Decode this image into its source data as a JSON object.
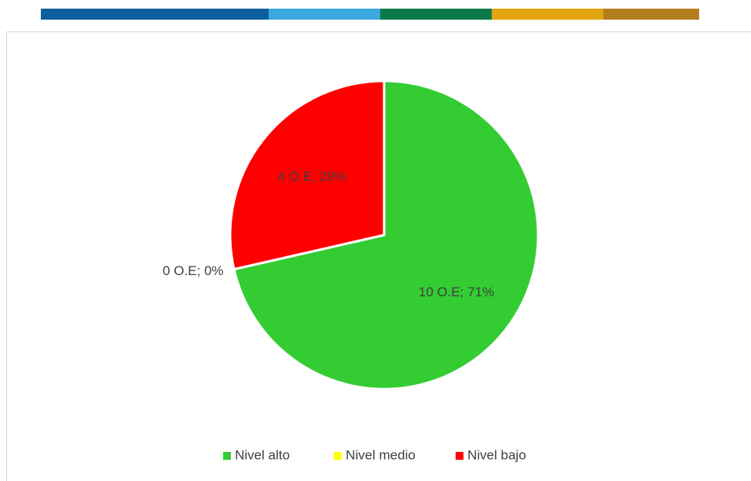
{
  "chart_data": {
    "type": "pie",
    "categories": [
      "Nivel alto",
      "Nivel medio",
      "Nivel bajo"
    ],
    "values": [
      10,
      0,
      4
    ],
    "value_labels": [
      "10 O.E; 71%",
      "0 O.E; 0%",
      "4 O.E; 29%"
    ],
    "colors": [
      "#33cc33",
      "#ffff00",
      "#ff0000"
    ],
    "legend": "bottom"
  }
}
